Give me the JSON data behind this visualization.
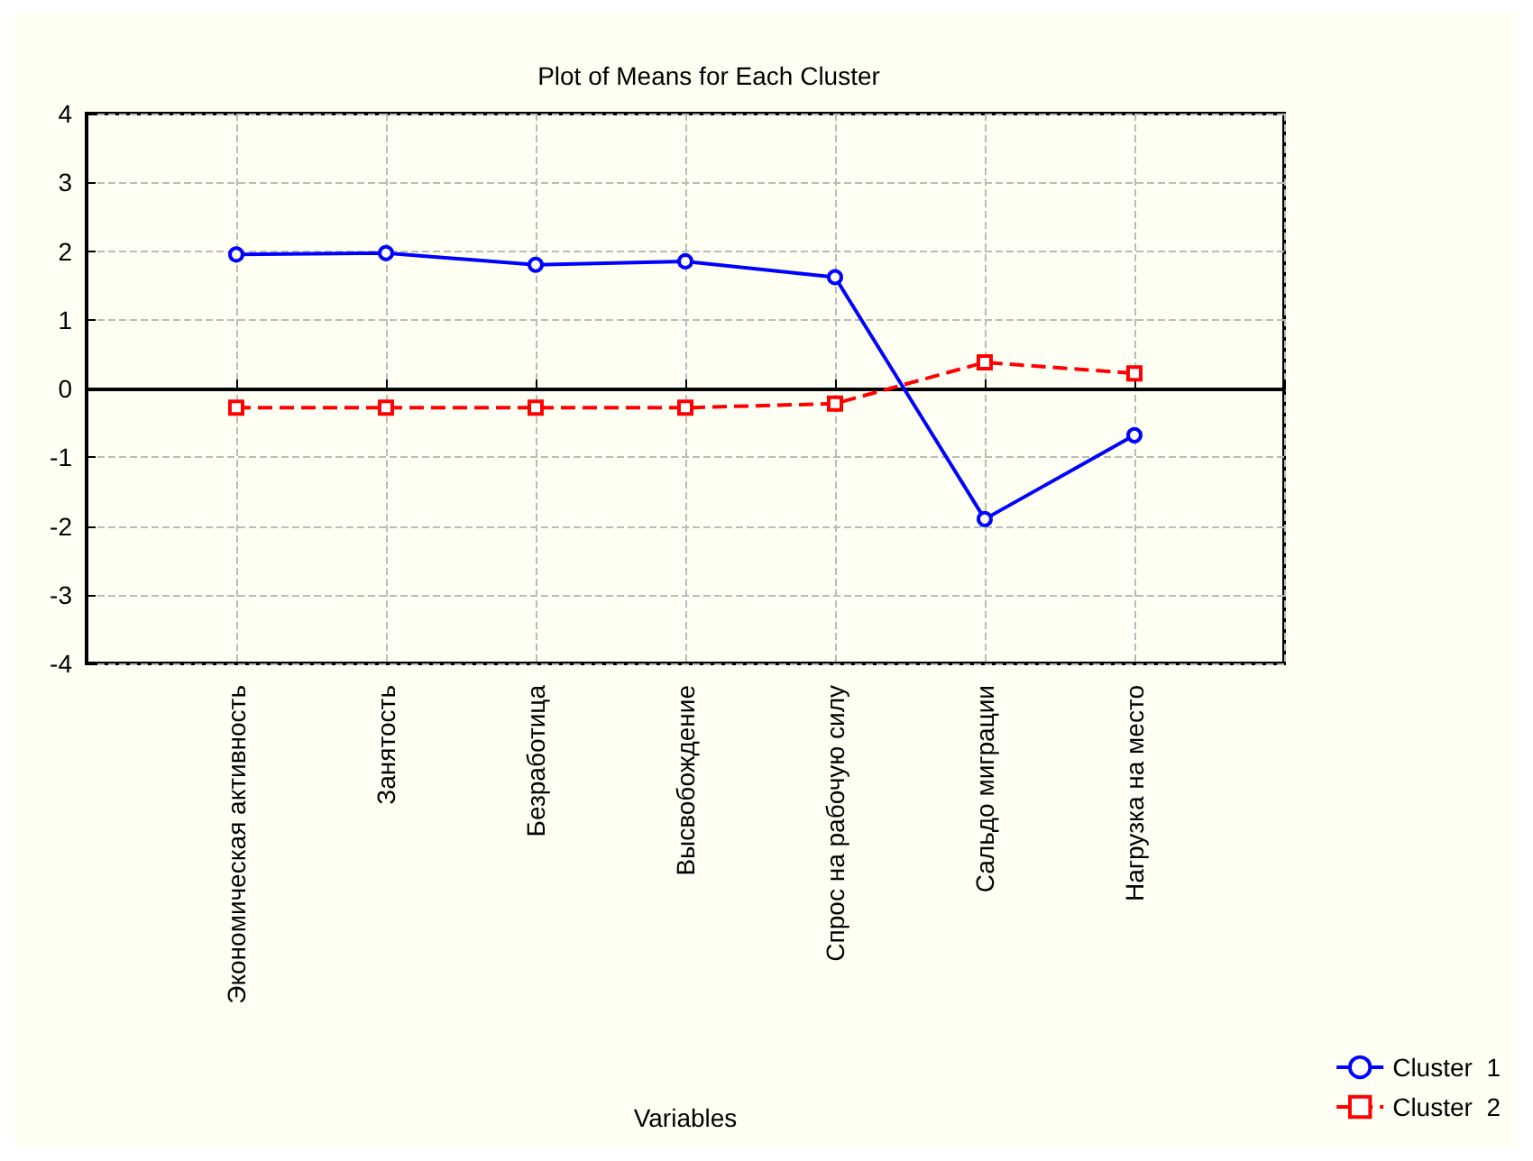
{
  "chart_data": {
    "type": "line",
    "title": "Plot of Means for Each Cluster",
    "xlabel": "Variables",
    "categories": [
      "Экономическая активность",
      "Занятость",
      "Безработица",
      "Высвобождение",
      "Спрос на рабочую силу",
      "Сальдо миграции",
      "Нагрузка на место"
    ],
    "series": [
      {
        "name": "Cluster  1",
        "color": "#0000ff",
        "values": [
          1.95,
          1.97,
          1.8,
          1.85,
          1.62,
          -1.9,
          -0.68
        ],
        "marker": "circle",
        "line_style": "solid"
      },
      {
        "name": "Cluster  2",
        "color": "#ff0000",
        "values": [
          -0.28,
          -0.28,
          -0.28,
          -0.28,
          -0.22,
          0.38,
          0.22
        ],
        "marker": "square",
        "line_style": "dashed"
      }
    ],
    "ylim": [
      -4,
      4
    ],
    "yticks": [
      -4,
      -3,
      -2,
      -1,
      0,
      1,
      2,
      3,
      4
    ],
    "grid": true,
    "legend": "bottom right"
  }
}
